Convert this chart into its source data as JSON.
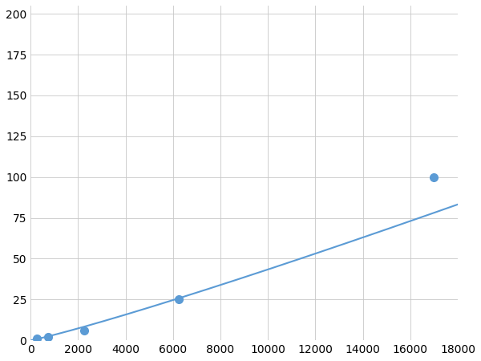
{
  "x_data": [
    250,
    750,
    2250,
    6250,
    17000
  ],
  "y_data": [
    1,
    2,
    6,
    25,
    100
  ],
  "line_color": "#5b9bd5",
  "marker_color": "#5b9bd5",
  "marker_size": 7,
  "line_width": 1.5,
  "xlim": [
    0,
    18000
  ],
  "ylim": [
    0,
    205
  ],
  "xticks": [
    0,
    2000,
    4000,
    6000,
    8000,
    10000,
    12000,
    14000,
    16000,
    18000
  ],
  "yticks": [
    0,
    25,
    50,
    75,
    100,
    125,
    150,
    175,
    200
  ],
  "grid_color": "#c8c8c8",
  "grid_linestyle": "-",
  "grid_linewidth": 0.6,
  "bg_color": "#ffffff",
  "tick_fontsize": 10,
  "power_law_a": 0.000118,
  "power_law_b": 1.65
}
